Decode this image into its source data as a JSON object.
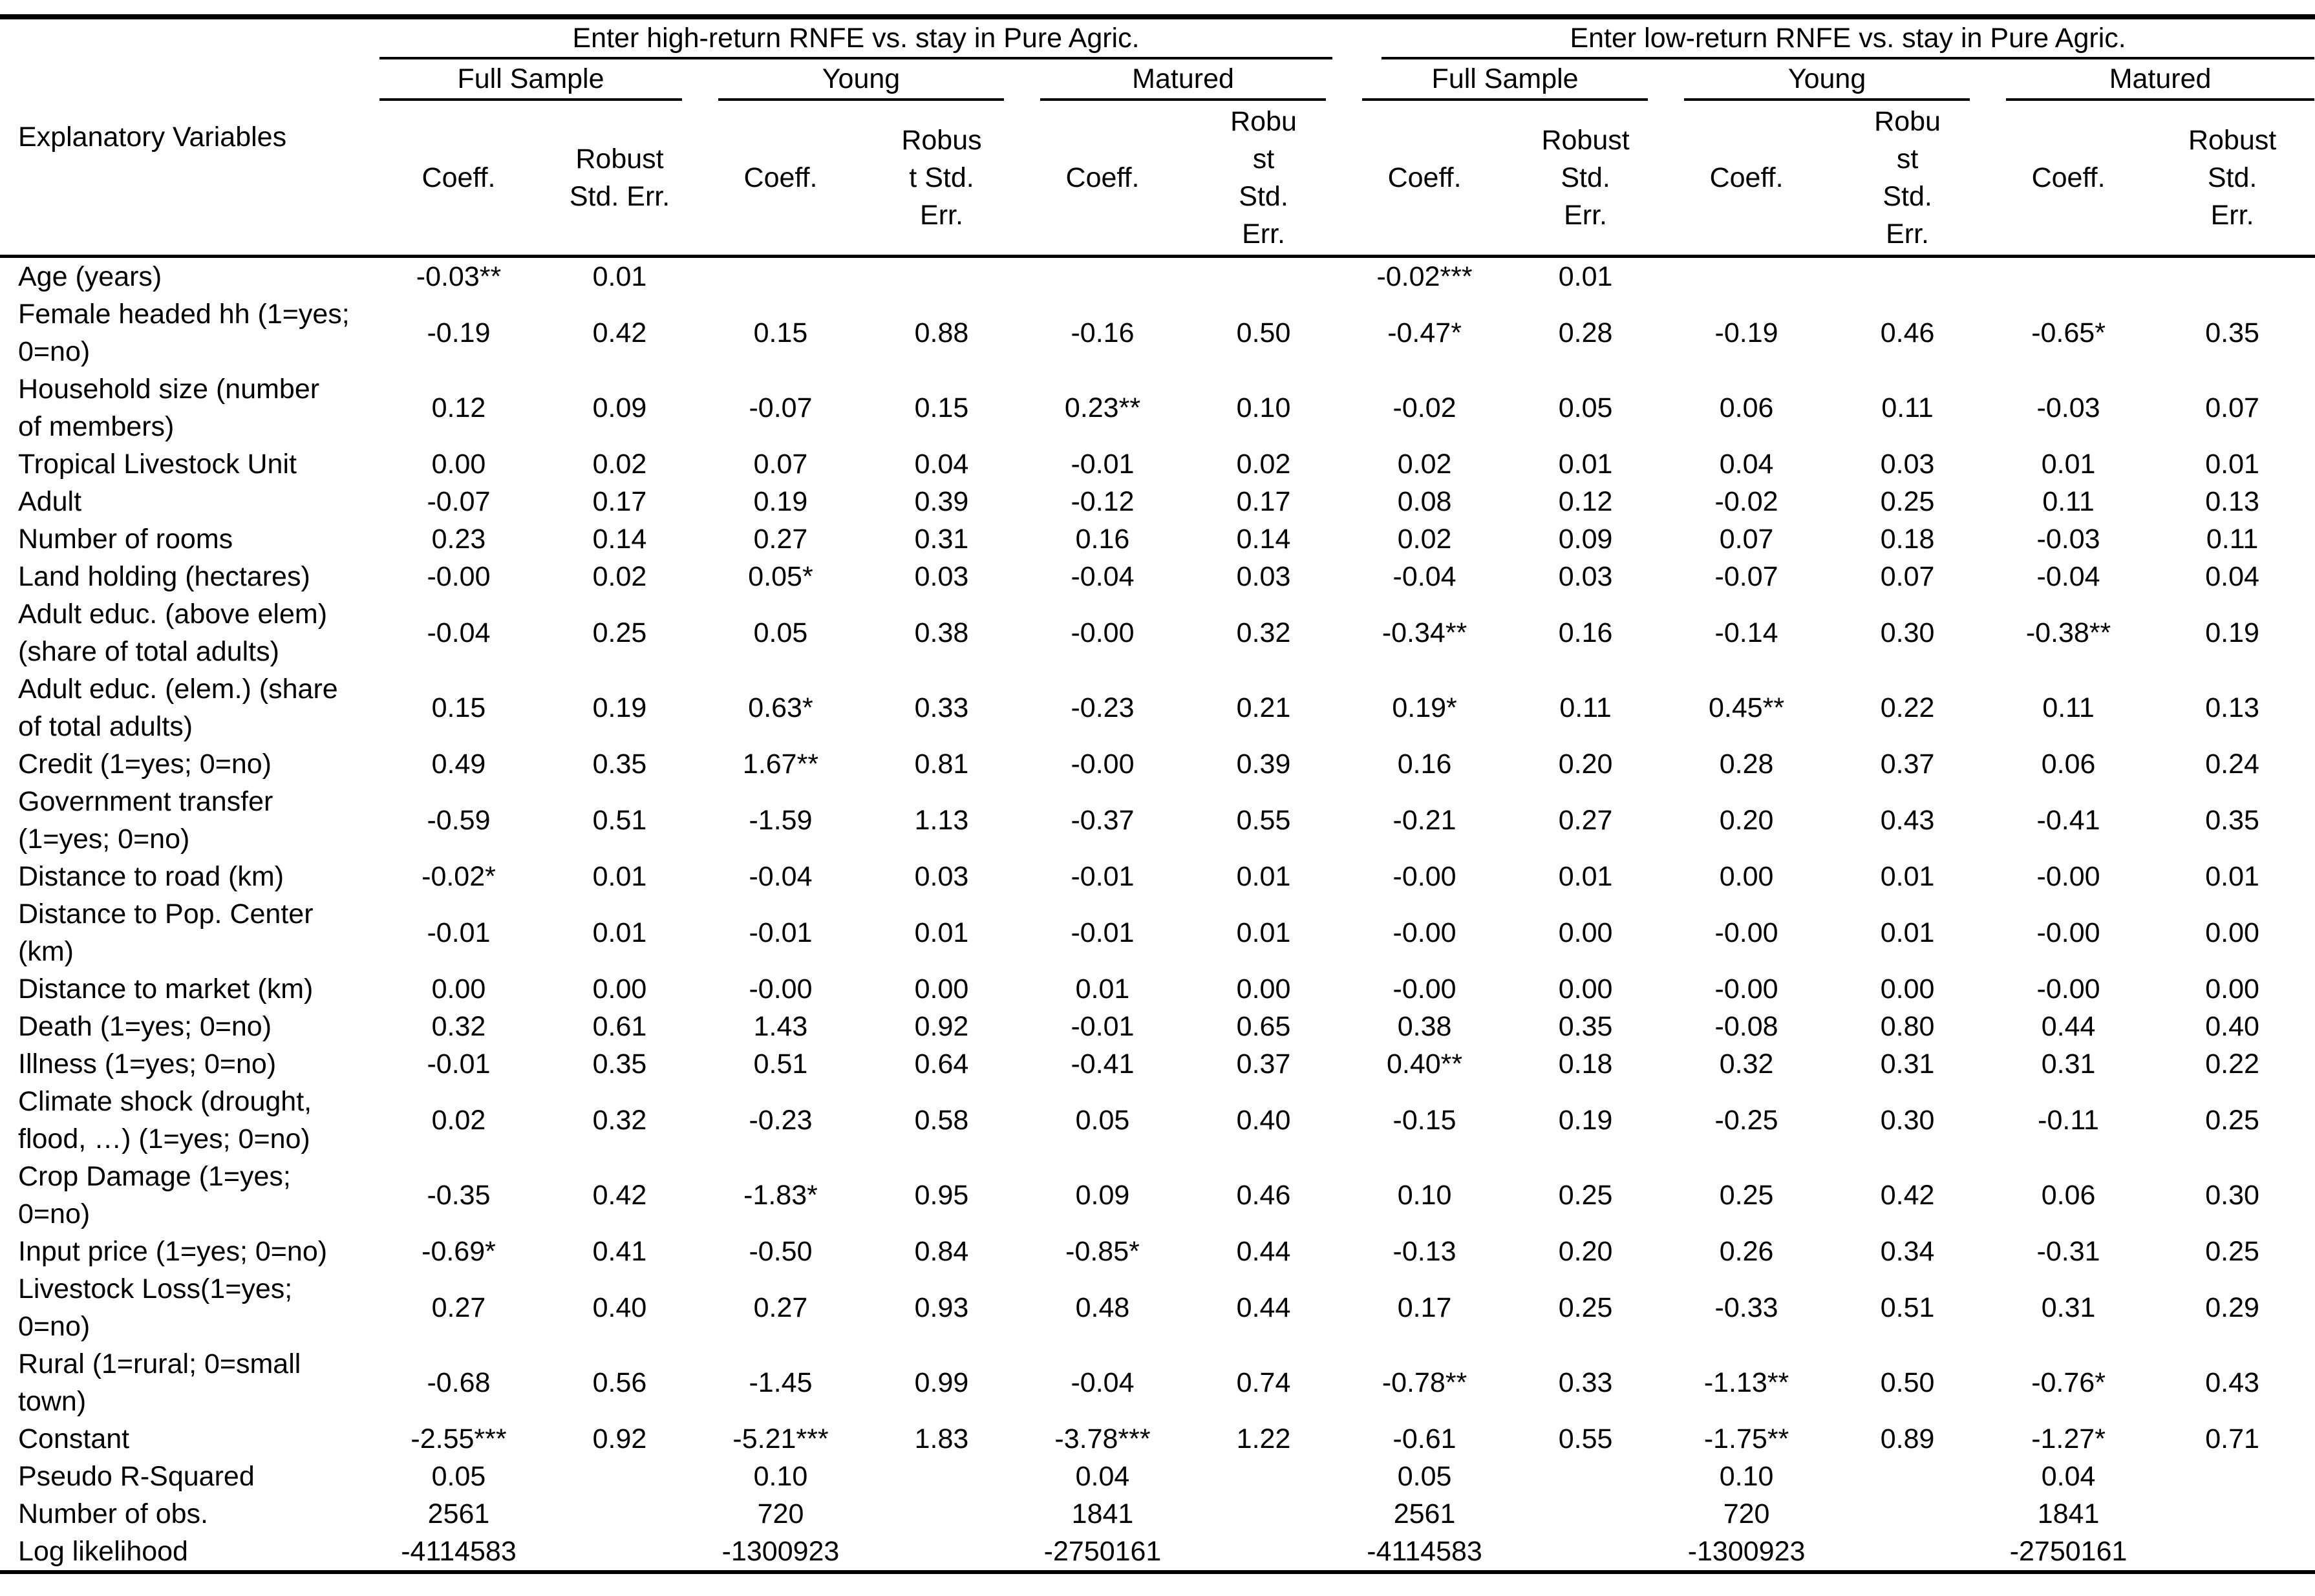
{
  "table": {
    "row_header_label": "Explanatory Variables",
    "groups": [
      {
        "title": "Enter high-return RNFE vs. stay in Pure Agric.",
        "subgroups": [
          {
            "label": "Full Sample",
            "coeff_header": "Coeff.",
            "se_header": "Robust\nStd. Err."
          },
          {
            "label": "Young",
            "coeff_header": "Coeff.",
            "se_header": "Robus\nt Std.\nErr."
          },
          {
            "label": "Matured",
            "coeff_header": "Coeff.",
            "se_header": "Robu\nst\nStd.\nErr."
          }
        ]
      },
      {
        "title": "Enter low-return RNFE vs. stay in Pure Agric.",
        "subgroups": [
          {
            "label": "Full Sample",
            "coeff_header": "Coeff.",
            "se_header": "Robust\nStd.\nErr."
          },
          {
            "label": "Young",
            "coeff_header": "Coeff.",
            "se_header": "Robu\nst\nStd.\nErr."
          },
          {
            "label": "Matured",
            "coeff_header": "Coeff.",
            "se_header": "Robust\nStd.\nErr."
          }
        ]
      }
    ],
    "rows": [
      {
        "label": "Age (years)",
        "values": [
          "-0.03**",
          "0.01",
          "",
          "",
          "",
          "",
          "-0.02***",
          "0.01",
          "",
          "",
          "",
          ""
        ]
      },
      {
        "label": "Female headed hh (1=yes;\n0=no)",
        "values": [
          "-0.19",
          "0.42",
          "0.15",
          "0.88",
          "-0.16",
          "0.50",
          "-0.47*",
          "0.28",
          "-0.19",
          "0.46",
          "-0.65*",
          "0.35"
        ]
      },
      {
        "label": "Household size (number\nof members)",
        "values": [
          "0.12",
          "0.09",
          "-0.07",
          "0.15",
          "0.23**",
          "0.10",
          "-0.02",
          "0.05",
          "0.06",
          "0.11",
          "-0.03",
          "0.07"
        ]
      },
      {
        "label": "Tropical Livestock Unit",
        "values": [
          "0.00",
          "0.02",
          "0.07",
          "0.04",
          "-0.01",
          "0.02",
          "0.02",
          "0.01",
          "0.04",
          "0.03",
          "0.01",
          "0.01"
        ]
      },
      {
        "label": "Adult",
        "values": [
          "-0.07",
          "0.17",
          "0.19",
          "0.39",
          "-0.12",
          "0.17",
          "0.08",
          "0.12",
          "-0.02",
          "0.25",
          "0.11",
          "0.13"
        ]
      },
      {
        "label": "Number of rooms",
        "values": [
          "0.23",
          "0.14",
          "0.27",
          "0.31",
          "0.16",
          "0.14",
          "0.02",
          "0.09",
          "0.07",
          "0.18",
          "-0.03",
          "0.11"
        ]
      },
      {
        "label": "Land holding (hectares)",
        "values": [
          "-0.00",
          "0.02",
          "0.05*",
          "0.03",
          "-0.04",
          "0.03",
          "-0.04",
          "0.03",
          "-0.07",
          "0.07",
          "-0.04",
          "0.04"
        ]
      },
      {
        "label": "Adult educ. (above elem)\n(share of total adults)",
        "values": [
          "-0.04",
          "0.25",
          "0.05",
          "0.38",
          "-0.00",
          "0.32",
          "-0.34**",
          "0.16",
          "-0.14",
          "0.30",
          "-0.38**",
          "0.19"
        ]
      },
      {
        "label": "Adult educ. (elem.) (share\nof total adults)",
        "values": [
          "0.15",
          "0.19",
          "0.63*",
          "0.33",
          "-0.23",
          "0.21",
          "0.19*",
          "0.11",
          "0.45**",
          "0.22",
          "0.11",
          "0.13"
        ]
      },
      {
        "label": "Credit (1=yes; 0=no)",
        "values": [
          "0.49",
          "0.35",
          "1.67**",
          "0.81",
          "-0.00",
          "0.39",
          "0.16",
          "0.20",
          "0.28",
          "0.37",
          "0.06",
          "0.24"
        ]
      },
      {
        "label": "Government transfer\n(1=yes; 0=no)",
        "values": [
          "-0.59",
          "0.51",
          "-1.59",
          "1.13",
          "-0.37",
          "0.55",
          "-0.21",
          "0.27",
          "0.20",
          "0.43",
          "-0.41",
          "0.35"
        ]
      },
      {
        "label": "Distance to road (km)",
        "values": [
          "-0.02*",
          "0.01",
          "-0.04",
          "0.03",
          "-0.01",
          "0.01",
          "-0.00",
          "0.01",
          "0.00",
          "0.01",
          "-0.00",
          "0.01"
        ]
      },
      {
        "label": "Distance to Pop. Center\n(km)",
        "values": [
          "-0.01",
          "0.01",
          "-0.01",
          "0.01",
          "-0.01",
          "0.01",
          "-0.00",
          "0.00",
          "-0.00",
          "0.01",
          "-0.00",
          "0.00"
        ]
      },
      {
        "label": "Distance to market (km)",
        "values": [
          "0.00",
          "0.00",
          "-0.00",
          "0.00",
          "0.01",
          "0.00",
          "-0.00",
          "0.00",
          "-0.00",
          "0.00",
          "-0.00",
          "0.00"
        ]
      },
      {
        "label": "Death (1=yes; 0=no)",
        "values": [
          "0.32",
          "0.61",
          "1.43",
          "0.92",
          "-0.01",
          "0.65",
          "0.38",
          "0.35",
          "-0.08",
          "0.80",
          "0.44",
          "0.40"
        ]
      },
      {
        "label": "Illness (1=yes; 0=no)",
        "values": [
          "-0.01",
          "0.35",
          "0.51",
          "0.64",
          "-0.41",
          "0.37",
          "0.40**",
          "0.18",
          "0.32",
          "0.31",
          "0.31",
          "0.22"
        ]
      },
      {
        "label": "Climate shock (drought,\nflood, …) (1=yes; 0=no)",
        "values": [
          "0.02",
          "0.32",
          "-0.23",
          "0.58",
          "0.05",
          "0.40",
          "-0.15",
          "0.19",
          "-0.25",
          "0.30",
          "-0.11",
          "0.25"
        ]
      },
      {
        "label": "Crop Damage (1=yes;\n0=no)",
        "values": [
          "-0.35",
          "0.42",
          "-1.83*",
          "0.95",
          "0.09",
          "0.46",
          "0.10",
          "0.25",
          "0.25",
          "0.42",
          "0.06",
          "0.30"
        ]
      },
      {
        "label": "Input price  (1=yes; 0=no)",
        "values": [
          "-0.69*",
          "0.41",
          "-0.50",
          "0.84",
          "-0.85*",
          "0.44",
          "-0.13",
          "0.20",
          "0.26",
          "0.34",
          "-0.31",
          "0.25"
        ]
      },
      {
        "label": "Livestock Loss(1=yes;\n0=no)",
        "values": [
          "0.27",
          "0.40",
          "0.27",
          "0.93",
          "0.48",
          "0.44",
          "0.17",
          "0.25",
          "-0.33",
          "0.51",
          "0.31",
          "0.29"
        ]
      },
      {
        "label": "Rural (1=rural; 0=small\ntown)",
        "values": [
          "-0.68",
          "0.56",
          "-1.45",
          "0.99",
          "-0.04",
          "0.74",
          "-0.78**",
          "0.33",
          "-1.13**",
          "0.50",
          "-0.76*",
          "0.43"
        ]
      },
      {
        "label": "Constant",
        "values": [
          "-2.55***",
          "0.92",
          "-5.21***",
          "1.83",
          "-3.78***",
          "1.22",
          "-0.61",
          "0.55",
          "-1.75**",
          "0.89",
          "-1.27*",
          "0.71"
        ]
      },
      {
        "label": "Pseudo R-Squared",
        "values": [
          "0.05",
          "",
          "0.10",
          "",
          "0.04",
          "",
          "0.05",
          "",
          "0.10",
          "",
          "0.04",
          ""
        ]
      },
      {
        "label": "Number of obs.",
        "values": [
          "2561",
          "",
          "720",
          "",
          "1841",
          "",
          "2561",
          "",
          "720",
          "",
          "1841",
          ""
        ]
      },
      {
        "label": "Log likelihood",
        "values": [
          "-4114583",
          "",
          "-1300923",
          "",
          "-2750161",
          "",
          "-4114583",
          "",
          "-1300923",
          "",
          "-2750161",
          ""
        ]
      }
    ]
  }
}
